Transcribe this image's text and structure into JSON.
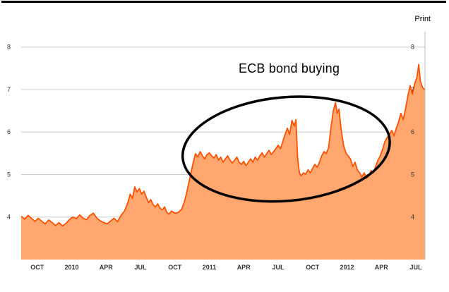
{
  "header": {
    "print_label": "Print"
  },
  "colors": {
    "line": "#ff5200",
    "fill": "#ffa76e",
    "grid": "#cccccc",
    "axis_line": "#bbbbbb",
    "axis_text": "#333333",
    "annotation": "#000000"
  },
  "chart_data": {
    "type": "area",
    "title": "",
    "xlabel": "",
    "ylabel": "",
    "legend": "none",
    "grid": "horizontal",
    "ylim": [
      3.0,
      8.36
    ],
    "xlim": [
      0,
      35.2
    ],
    "y_ticks": [
      4,
      5,
      6,
      7,
      8
    ],
    "x_ticks": [
      {
        "t": 1.4,
        "label": "OCT"
      },
      {
        "t": 4.4,
        "label": "2010"
      },
      {
        "t": 7.4,
        "label": "APR"
      },
      {
        "t": 10.4,
        "label": "JUL"
      },
      {
        "t": 13.4,
        "label": "OCT"
      },
      {
        "t": 16.4,
        "label": "2011"
      },
      {
        "t": 19.4,
        "label": "APR"
      },
      {
        "t": 22.4,
        "label": "JUL"
      },
      {
        "t": 25.4,
        "label": "OCT"
      },
      {
        "t": 28.4,
        "label": "2012"
      },
      {
        "t": 31.4,
        "label": "APR"
      },
      {
        "t": 34.4,
        "label": "JUL"
      }
    ],
    "annotation_text": "ECB bond buying",
    "ellipse": {
      "t": 23.1,
      "v": 5.6,
      "rt": 9.05,
      "rv": 1.22,
      "rotate_deg": -5
    },
    "series": [
      {
        "points": [
          [
            0,
            4.02
          ],
          [
            0.3,
            3.95
          ],
          [
            0.6,
            4.04
          ],
          [
            0.9,
            3.97
          ],
          [
            1.2,
            3.9
          ],
          [
            1.5,
            3.97
          ],
          [
            1.8,
            3.9
          ],
          [
            2.1,
            3.84
          ],
          [
            2.4,
            3.93
          ],
          [
            2.7,
            3.87
          ],
          [
            3.0,
            3.8
          ],
          [
            3.3,
            3.87
          ],
          [
            3.6,
            3.79
          ],
          [
            3.9,
            3.85
          ],
          [
            4.2,
            3.94
          ],
          [
            4.5,
            4.0
          ],
          [
            4.8,
            3.96
          ],
          [
            5.1,
            4.05
          ],
          [
            5.4,
            3.97
          ],
          [
            5.7,
            3.94
          ],
          [
            6.0,
            4.04
          ],
          [
            6.3,
            4.09
          ],
          [
            6.6,
            3.97
          ],
          [
            6.9,
            3.91
          ],
          [
            7.2,
            3.87
          ],
          [
            7.5,
            3.84
          ],
          [
            7.8,
            3.91
          ],
          [
            8.1,
            3.97
          ],
          [
            8.4,
            3.89
          ],
          [
            8.7,
            4.04
          ],
          [
            9.0,
            4.14
          ],
          [
            9.3,
            4.34
          ],
          [
            9.5,
            4.54
          ],
          [
            9.7,
            4.44
          ],
          [
            9.9,
            4.71
          ],
          [
            10.1,
            4.59
          ],
          [
            10.3,
            4.67
          ],
          [
            10.5,
            4.54
          ],
          [
            10.7,
            4.61
          ],
          [
            10.9,
            4.47
          ],
          [
            11.1,
            4.34
          ],
          [
            11.3,
            4.41
          ],
          [
            11.5,
            4.29
          ],
          [
            11.7,
            4.24
          ],
          [
            11.9,
            4.31
          ],
          [
            12.1,
            4.21
          ],
          [
            12.3,
            4.17
          ],
          [
            12.5,
            4.24
          ],
          [
            12.7,
            4.11
          ],
          [
            12.9,
            4.07
          ],
          [
            13.1,
            4.14
          ],
          [
            13.4,
            4.09
          ],
          [
            13.7,
            4.11
          ],
          [
            14.0,
            4.19
          ],
          [
            14.2,
            4.34
          ],
          [
            14.4,
            4.54
          ],
          [
            14.6,
            4.79
          ],
          [
            14.8,
            5.04
          ],
          [
            15.0,
            5.29
          ],
          [
            15.2,
            5.49
          ],
          [
            15.4,
            5.41
          ],
          [
            15.6,
            5.54
          ],
          [
            15.8,
            5.44
          ],
          [
            16.0,
            5.37
          ],
          [
            16.2,
            5.47
          ],
          [
            16.4,
            5.51
          ],
          [
            16.6,
            5.44
          ],
          [
            16.8,
            5.39
          ],
          [
            17.0,
            5.47
          ],
          [
            17.2,
            5.34
          ],
          [
            17.4,
            5.41
          ],
          [
            17.6,
            5.29
          ],
          [
            17.8,
            5.37
          ],
          [
            18.0,
            5.44
          ],
          [
            18.2,
            5.34
          ],
          [
            18.4,
            5.27
          ],
          [
            18.6,
            5.34
          ],
          [
            18.8,
            5.41
          ],
          [
            19.0,
            5.29
          ],
          [
            19.2,
            5.24
          ],
          [
            19.4,
            5.31
          ],
          [
            19.6,
            5.21
          ],
          [
            19.8,
            5.29
          ],
          [
            20.0,
            5.37
          ],
          [
            20.2,
            5.29
          ],
          [
            20.4,
            5.41
          ],
          [
            20.6,
            5.34
          ],
          [
            20.8,
            5.44
          ],
          [
            21.0,
            5.51
          ],
          [
            21.2,
            5.41
          ],
          [
            21.4,
            5.49
          ],
          [
            21.6,
            5.57
          ],
          [
            21.8,
            5.47
          ],
          [
            22.0,
            5.54
          ],
          [
            22.2,
            5.61
          ],
          [
            22.4,
            5.69
          ],
          [
            22.6,
            5.61
          ],
          [
            22.8,
            5.77
          ],
          [
            23.0,
            5.94
          ],
          [
            23.2,
            6.09
          ],
          [
            23.4,
            5.94
          ],
          [
            23.6,
            6.27
          ],
          [
            23.8,
            6.14
          ],
          [
            23.95,
            6.29
          ],
          [
            24.1,
            5.39
          ],
          [
            24.25,
            5.04
          ],
          [
            24.4,
            4.97
          ],
          [
            24.6,
            5.04
          ],
          [
            24.8,
            5.01
          ],
          [
            25.0,
            5.11
          ],
          [
            25.2,
            5.04
          ],
          [
            25.4,
            5.14
          ],
          [
            25.6,
            5.24
          ],
          [
            25.8,
            5.17
          ],
          [
            26.0,
            5.29
          ],
          [
            26.2,
            5.44
          ],
          [
            26.4,
            5.54
          ],
          [
            26.6,
            5.49
          ],
          [
            26.8,
            5.64
          ],
          [
            27.0,
            6.09
          ],
          [
            27.2,
            6.49
          ],
          [
            27.4,
            6.69
          ],
          [
            27.55,
            6.44
          ],
          [
            27.7,
            6.54
          ],
          [
            27.9,
            6.04
          ],
          [
            28.1,
            5.69
          ],
          [
            28.3,
            5.51
          ],
          [
            28.5,
            5.44
          ],
          [
            28.7,
            5.37
          ],
          [
            28.9,
            5.19
          ],
          [
            29.1,
            5.29
          ],
          [
            29.3,
            5.11
          ],
          [
            29.5,
            5.04
          ],
          [
            29.7,
            4.94
          ],
          [
            29.9,
            5.04
          ],
          [
            30.1,
            4.91
          ],
          [
            30.3,
            4.97
          ],
          [
            30.5,
            5.09
          ],
          [
            30.7,
            5.04
          ],
          [
            30.9,
            5.19
          ],
          [
            31.1,
            5.34
          ],
          [
            31.3,
            5.44
          ],
          [
            31.5,
            5.59
          ],
          [
            31.7,
            5.77
          ],
          [
            31.9,
            5.87
          ],
          [
            32.1,
            5.94
          ],
          [
            32.3,
            6.04
          ],
          [
            32.5,
            5.91
          ],
          [
            32.7,
            6.09
          ],
          [
            32.9,
            6.24
          ],
          [
            33.1,
            6.44
          ],
          [
            33.3,
            6.29
          ],
          [
            33.5,
            6.54
          ],
          [
            33.7,
            6.84
          ],
          [
            33.9,
            7.09
          ],
          [
            34.1,
            6.89
          ],
          [
            34.3,
            7.14
          ],
          [
            34.5,
            7.29
          ],
          [
            34.65,
            7.59
          ],
          [
            34.8,
            7.19
          ],
          [
            35.0,
            7.04
          ],
          [
            35.2,
            6.99
          ]
        ]
      }
    ]
  }
}
